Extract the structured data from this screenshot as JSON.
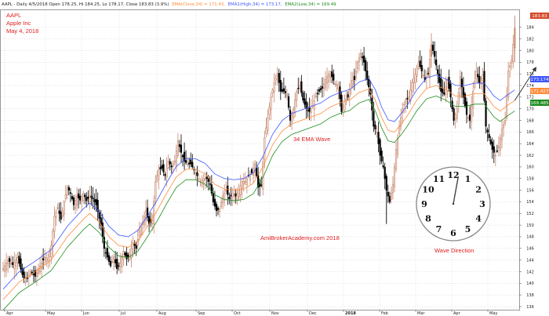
{
  "header": {
    "ticker_info": "AAPL - Daily 4/5/2018 Open 178.25, Hi 184.25, Lo 178.17, Close 183.83 (3.9%)",
    "ema_close": "EMA(Close,34) = 171.43,",
    "ema_high": "EMA1(High,34) = 173.17,",
    "ema_low": "EMA2(Low,34) = 169.49"
  },
  "title_block": {
    "line1": "AAPL",
    "line2": "Apple Inc",
    "line3": "May 4, 2018"
  },
  "annotations": {
    "wave": "34 EMA Wave",
    "watermark": "AmiBrokerAcademy.com  2018",
    "direction": "Wave Direction"
  },
  "clock": {
    "numbers": [
      "12",
      "1",
      "2",
      "3",
      "4",
      "5",
      "6",
      "7",
      "8",
      "9",
      "10",
      "11"
    ]
  },
  "colors": {
    "up": "#c98a70",
    "down": "#000000",
    "ema_close": "#ff8c3a",
    "ema_high": "#3c56ff",
    "ema_low": "#1d8c1d",
    "annotation": "#e02020",
    "price_badge": "#d44a2a",
    "grid": "#c8c8c8"
  },
  "chart_data": {
    "type": "candlestick",
    "x_tick_labels": [
      "Apr",
      "May",
      "Jun",
      "Jul",
      "Aug",
      "Sep",
      "Oct",
      "Nov",
      "Dec",
      "2018",
      "Feb",
      "Mar",
      "Apr",
      "May"
    ],
    "y_ticks": [
      136,
      138,
      140,
      142,
      144,
      146,
      148,
      150,
      152,
      154,
      156,
      158,
      160,
      162,
      164,
      166,
      168,
      170,
      172,
      174,
      176,
      178,
      180,
      182,
      184
    ],
    "ylim": [
      135,
      186
    ],
    "grid": true,
    "badges": [
      {
        "value": "183.83",
        "role": "close"
      },
      {
        "value": "173.174",
        "role": "ema_high"
      },
      {
        "value": "171.427",
        "role": "ema_close"
      },
      {
        "value": "169.485",
        "role": "ema_low"
      }
    ],
    "series": [
      {
        "name": "EMA(Close,34)",
        "values": [
          171.43
        ]
      },
      {
        "name": "EMA1(High,34)",
        "values": [
          173.17
        ]
      },
      {
        "name": "EMA2(Low,34)",
        "values": [
          169.49
        ]
      }
    ],
    "ohlc_path": [
      [
        0,
        142.5
      ],
      [
        3,
        144
      ],
      [
        6,
        143.2
      ],
      [
        9,
        144.4
      ],
      [
        12,
        141.5
      ],
      [
        14,
        140.3
      ],
      [
        17,
        142
      ],
      [
        20,
        141.2
      ],
      [
        23,
        143
      ],
      [
        26,
        144.5
      ],
      [
        28,
        144.2
      ],
      [
        30,
        146.5
      ],
      [
        32,
        151.5
      ],
      [
        34,
        153
      ],
      [
        36,
        151
      ],
      [
        38,
        154
      ],
      [
        40,
        156.5
      ],
      [
        42,
        155.5
      ],
      [
        44,
        153.5
      ],
      [
        46,
        155
      ],
      [
        48,
        154.3
      ],
      [
        50,
        155.5
      ],
      [
        52,
        154.2
      ],
      [
        54,
        155
      ],
      [
        56,
        154.5
      ],
      [
        58,
        153.5
      ],
      [
        61,
        150
      ],
      [
        63,
        146
      ],
      [
        65,
        144.5
      ],
      [
        67,
        143
      ],
      [
        69,
        144.5
      ],
      [
        71,
        142.5
      ],
      [
        73,
        143.5
      ],
      [
        75,
        145.5
      ],
      [
        77,
        144.2
      ],
      [
        79,
        145
      ],
      [
        81,
        147
      ],
      [
        83,
        146
      ],
      [
        85,
        149
      ],
      [
        87,
        150.5
      ],
      [
        89,
        152.5
      ],
      [
        91,
        150.2
      ],
      [
        93,
        150.8
      ],
      [
        95,
        157.5
      ],
      [
        97,
        159.5
      ],
      [
        99,
        159.8
      ],
      [
        101,
        158.5
      ],
      [
        103,
        161
      ],
      [
        105,
        160
      ],
      [
        107,
        161
      ],
      [
        109,
        164.5
      ],
      [
        111,
        162.5
      ],
      [
        113,
        161
      ],
      [
        115,
        160.5
      ],
      [
        117,
        160.5
      ],
      [
        119,
        159.5
      ],
      [
        121,
        158.5
      ],
      [
        123,
        157.5
      ],
      [
        125,
        158
      ],
      [
        127,
        158
      ],
      [
        129,
        157
      ],
      [
        131,
        154
      ],
      [
        133,
        152.5
      ],
      [
        135,
        152.8
      ],
      [
        137,
        155
      ],
      [
        139,
        156
      ],
      [
        141,
        154.5
      ],
      [
        143,
        155.5
      ],
      [
        145,
        155
      ],
      [
        147,
        156
      ],
      [
        149,
        157.5
      ],
      [
        151,
        157.5
      ],
      [
        153,
        158.5
      ],
      [
        155,
        159
      ],
      [
        157,
        160.5
      ],
      [
        159,
        156.5
      ],
      [
        161,
        156.8
      ],
      [
        163,
        165
      ],
      [
        165,
        168.5
      ],
      [
        167,
        172
      ],
      [
        169,
        174.5
      ],
      [
        171,
        176
      ],
      [
        173,
        173
      ],
      [
        175,
        173
      ],
      [
        177,
        172.5
      ],
      [
        179,
        168
      ],
      [
        181,
        170
      ],
      [
        183,
        173
      ],
      [
        185,
        174
      ],
      [
        187,
        171.5
      ],
      [
        189,
        170
      ],
      [
        191,
        169.5
      ],
      [
        193,
        170.5
      ],
      [
        195,
        172.2
      ],
      [
        197,
        173
      ],
      [
        199,
        173.5
      ],
      [
        201,
        175
      ],
      [
        203,
        176
      ],
      [
        205,
        175.5
      ],
      [
        207,
        174.3
      ],
      [
        209,
        174
      ],
      [
        211,
        169.5
      ],
      [
        213,
        171.5
      ],
      [
        215,
        172
      ],
      [
        217,
        174.8
      ],
      [
        219,
        175
      ],
      [
        221,
        178
      ],
      [
        223,
        179.5
      ],
      [
        225,
        178
      ],
      [
        227,
        175
      ],
      [
        229,
        172.5
      ],
      [
        231,
        167
      ],
      [
        233,
        166
      ],
      [
        235,
        162
      ],
      [
        237,
        160
      ],
      [
        239,
        156
      ],
      [
        241,
        154
      ],
      [
        243,
        157
      ],
      [
        245,
        163
      ],
      [
        247,
        167
      ],
      [
        249,
        170
      ],
      [
        251,
        171.5
      ],
      [
        253,
        172
      ],
      [
        255,
        174.5
      ],
      [
        257,
        176
      ],
      [
        259,
        178
      ],
      [
        261,
        176.5
      ],
      [
        263,
        175
      ],
      [
        265,
        176
      ],
      [
        267,
        181
      ],
      [
        269,
        179
      ],
      [
        271,
        176
      ],
      [
        273,
        173
      ],
      [
        275,
        172.5
      ],
      [
        277,
        175
      ],
      [
        279,
        172
      ],
      [
        281,
        168
      ],
      [
        283,
        170
      ],
      [
        285,
        175.5
      ],
      [
        287,
        172
      ],
      [
        289,
        169
      ],
      [
        291,
        168
      ],
      [
        293,
        173
      ],
      [
        295,
        176.5
      ],
      [
        297,
        174.5
      ],
      [
        299,
        175.8
      ],
      [
        301,
        167
      ],
      [
        303,
        165
      ],
      [
        305,
        163
      ],
      [
        307,
        162
      ],
      [
        309,
        163.5
      ],
      [
        311,
        166.5
      ],
      [
        313,
        168
      ],
      [
        315,
        176.5
      ],
      [
        317,
        178.3
      ],
      [
        319,
        183.83
      ]
    ],
    "ema_path": [
      [
        0,
        137.2
      ],
      [
        10,
        140.2
      ],
      [
        20,
        142
      ],
      [
        30,
        144
      ],
      [
        40,
        148
      ],
      [
        50,
        151
      ],
      [
        54,
        152
      ],
      [
        60,
        150.5
      ],
      [
        66,
        148
      ],
      [
        72,
        146.5
      ],
      [
        78,
        146.2
      ],
      [
        84,
        147.3
      ],
      [
        90,
        149.8
      ],
      [
        96,
        152.5
      ],
      [
        102,
        155.5
      ],
      [
        108,
        158.3
      ],
      [
        114,
        159.6
      ],
      [
        120,
        159.6
      ],
      [
        126,
        158.8
      ],
      [
        132,
        157
      ],
      [
        138,
        156.2
      ],
      [
        144,
        156
      ],
      [
        150,
        156.2
      ],
      [
        156,
        157.2
      ],
      [
        162,
        160
      ],
      [
        168,
        163.8
      ],
      [
        174,
        166.2
      ],
      [
        180,
        167.4
      ],
      [
        186,
        168
      ],
      [
        192,
        168.6
      ],
      [
        198,
        169.2
      ],
      [
        204,
        170.3
      ],
      [
        210,
        171
      ],
      [
        216,
        171.5
      ],
      [
        222,
        172.8
      ],
      [
        228,
        173.4
      ],
      [
        232,
        171.5
      ],
      [
        236,
        168.5
      ],
      [
        240,
        166.3
      ],
      [
        244,
        166
      ],
      [
        248,
        167.3
      ],
      [
        252,
        168.8
      ],
      [
        258,
        171.5
      ],
      [
        264,
        173.5
      ],
      [
        270,
        174
      ],
      [
        276,
        173.3
      ],
      [
        282,
        172.2
      ],
      [
        288,
        172.2
      ],
      [
        294,
        172.6
      ],
      [
        300,
        172.6
      ],
      [
        306,
        170.4
      ],
      [
        310,
        169.6
      ],
      [
        314,
        170.5
      ],
      [
        319,
        171.43
      ]
    ],
    "ema_band_offset": 1.8,
    "arrow_target": [
      332,
      177
    ]
  }
}
